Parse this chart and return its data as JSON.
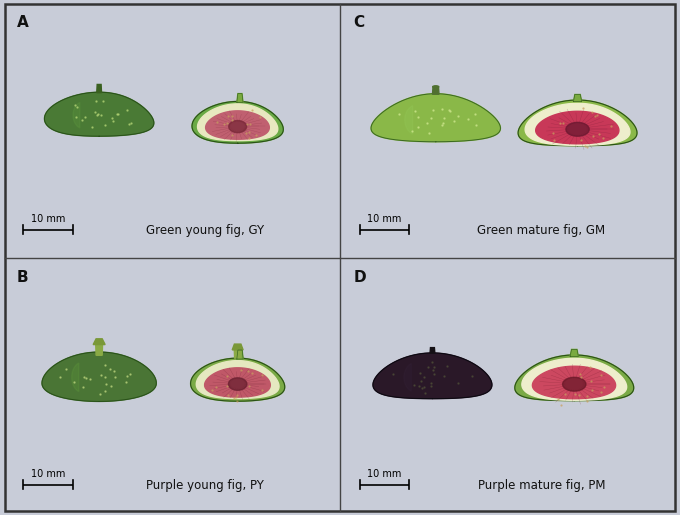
{
  "figure_width": 6.8,
  "figure_height": 5.15,
  "dpi": 100,
  "bg_color": "#c8ccd8",
  "panel_bg": "#c5c9d6",
  "border_color": "#444444",
  "border_lw": 1.2,
  "divider_color": "#444444",
  "divider_lw": 1.0,
  "label_fontsize": 11,
  "caption_fontsize": 8.5,
  "scale_fontsize": 7,
  "panels": [
    {
      "label": "A",
      "caption": "Green young fig, GY",
      "whole_color": "#4a7a35",
      "whole_color2": "#3d6828",
      "stem_color": "#3a5828",
      "stem_color2": "#527a3a",
      "skin_color": "#6aaa45",
      "skin_color2": "#4a8030",
      "flesh_color": "#e8e8c0",
      "flesh_color2": "#d5d5a8",
      "inner_color": "#c06070",
      "inner_color2": "#a04858",
      "center_color": "#7a2838",
      "style": "young_green"
    },
    {
      "label": "C",
      "caption": "Green mature fig, GM",
      "whole_color": "#8ab848",
      "whole_color2": "#6a9838",
      "stem_color": "#4a6828",
      "stem_color2": "#607848",
      "skin_color": "#8ab848",
      "skin_color2": "#6a9038",
      "flesh_color": "#eeeecc",
      "flesh_color2": "#ddddb8",
      "inner_color": "#c83858",
      "inner_color2": "#a82848",
      "center_color": "#6a1830",
      "style": "mature_green"
    },
    {
      "label": "B",
      "caption": "Purple young fig, PY",
      "whole_color": "#4a7535",
      "whole_color2": "#3a6028",
      "stem_color": "#8aaa50",
      "stem_color2": "#607838",
      "skin_color": "#7aaa45",
      "skin_color2": "#5a8830",
      "flesh_color": "#e5e8c0",
      "flesh_color2": "#d2d5a8",
      "inner_color": "#c05868",
      "inner_color2": "#a04050",
      "center_color": "#6a2030",
      "style": "young_purple"
    },
    {
      "label": "D",
      "caption": "Purple mature fig, PM",
      "whole_color": "#2a1828",
      "whole_color2": "#1a0a18",
      "stem_color": "#303028",
      "stem_color2": "#202018",
      "skin_color": "#7aaa45",
      "skin_color2": "#5a8830",
      "flesh_color": "#eeeecc",
      "flesh_color2": "#ddddb8",
      "inner_color": "#cc4860",
      "inner_color2": "#a83050",
      "center_color": "#6a1828",
      "style": "mature_purple"
    }
  ]
}
